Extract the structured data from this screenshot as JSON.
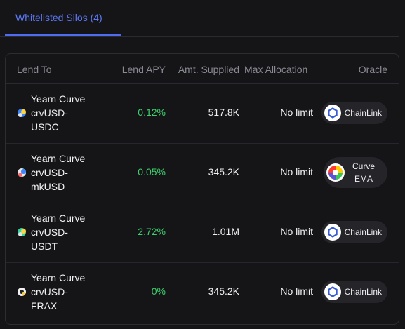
{
  "tabs": [
    {
      "label": "Whitelisted Silos (4)",
      "active": true
    }
  ],
  "table": {
    "headers": {
      "lend_to": "Lend To",
      "lend_apy": "Lend APY",
      "amt_supplied": "Amt. Supplied",
      "max_allocation": "Max Allocation",
      "oracle": "Oracle"
    },
    "rows": [
      {
        "name_lines": [
          "Yearn Curve",
          "crvUSD-",
          "USDC"
        ],
        "apy": "0.12%",
        "supplied": "517.8K",
        "allocation": "No limit",
        "oracle_lines": [
          "ChainLink"
        ],
        "oracle_icon": "chainlink-icon"
      },
      {
        "name_lines": [
          "Yearn Curve",
          "crvUSD-",
          "mkUSD"
        ],
        "apy": "0.05%",
        "supplied": "345.2K",
        "allocation": "No limit",
        "oracle_lines": [
          "Curve",
          "EMA"
        ],
        "oracle_icon": "curve-icon"
      },
      {
        "name_lines": [
          "Yearn Curve",
          "crvUSD-",
          "USDT"
        ],
        "apy": "2.72%",
        "supplied": "1.01M",
        "allocation": "No limit",
        "oracle_lines": [
          "ChainLink"
        ],
        "oracle_icon": "chainlink-icon"
      },
      {
        "name_lines": [
          "Yearn Curve",
          "crvUSD-",
          "FRAX"
        ],
        "apy": "0%",
        "supplied": "345.2K",
        "allocation": "No limit",
        "oracle_lines": [
          "ChainLink"
        ],
        "oracle_icon": "chainlink-icon"
      }
    ]
  },
  "colors": {
    "accent": "#5b78f5",
    "positive": "#3ecf6d",
    "chainlink": "#375bd2"
  }
}
